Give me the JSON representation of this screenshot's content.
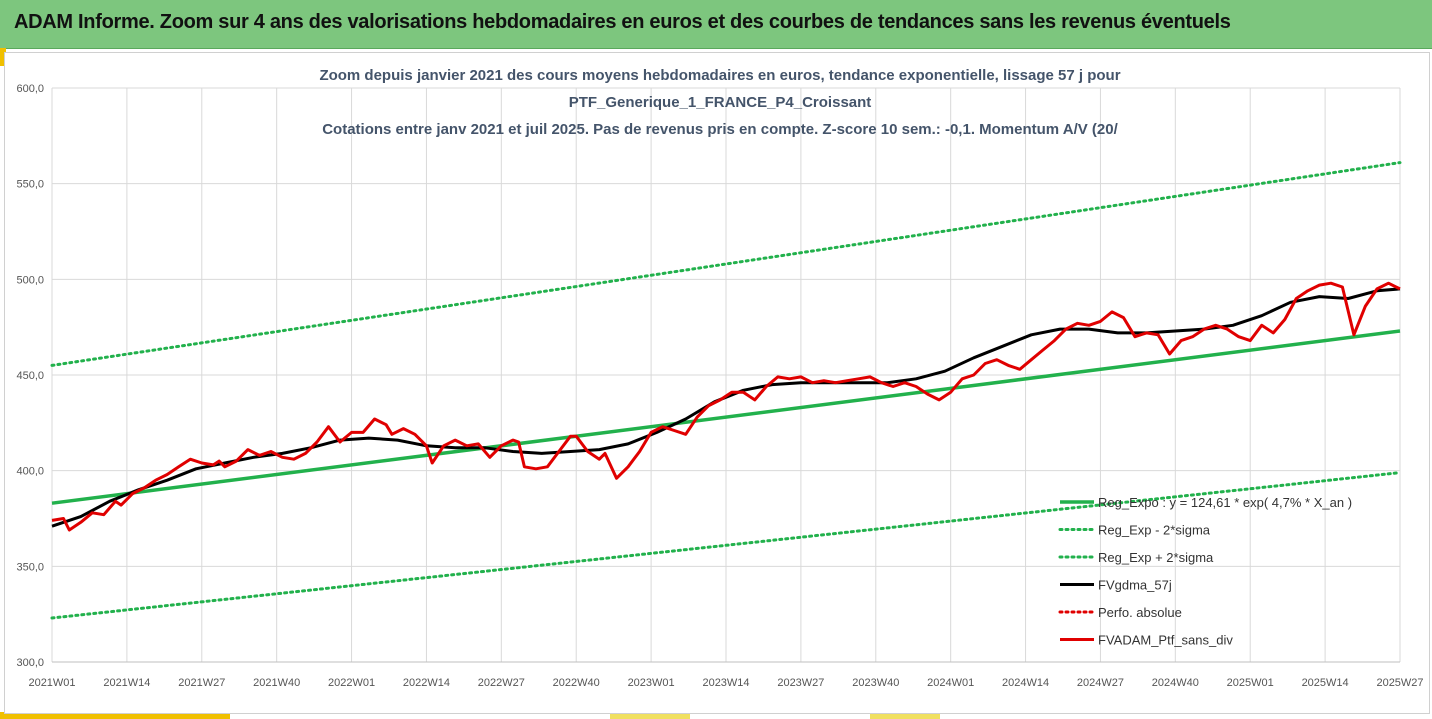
{
  "banner": {
    "title": "ADAM Informe. Zoom sur 4 ans des valorisations hebdomadaires en euros et des courbes de tendances sans les revenus éventuels"
  },
  "colors": {
    "banner_bg": "#7dc67e",
    "trend": "#22b14c",
    "sigma": "#22b14c",
    "mma": "#000000",
    "perfo": "#e00000",
    "portfolio": "#e00000"
  },
  "chart_data": {
    "type": "line",
    "title_lines": [
      "Zoom depuis janvier 2021 des cours moyens hebdomadaires  en euros, tendance exponentielle, lissage 57 j pour",
      "PTF_Generique_1_FRANCE_P4_Croissant",
      "Cotations entre janv 2021 et juil 2025. Pas de revenus pris en compte. Z-score 10 sem.: -0,1. Momentum A/V (20/"
    ],
    "ylim": [
      300,
      600
    ],
    "y_ticks": [
      "300,0",
      "350,0",
      "400,0",
      "450,0",
      "500,0",
      "550,0",
      "600,0"
    ],
    "y_tick_values": [
      300,
      350,
      400,
      450,
      500,
      550,
      600
    ],
    "x_ticks": [
      "2021W01",
      "2021W14",
      "2021W27",
      "2021W40",
      "2022W01",
      "2022W14",
      "2022W27",
      "2022W40",
      "2023W01",
      "2023W14",
      "2023W27",
      "2023W40",
      "2024W01",
      "2024W14",
      "2024W27",
      "2024W40",
      "2025W01",
      "2025W14",
      "2025W27"
    ],
    "x_range": [
      0,
      234
    ],
    "grid": true,
    "legend_position": "bottom-right",
    "series": [
      {
        "name": "Reg_Expo : y = 124,61 * exp( 4,7% *  X_an )",
        "kind": "trend",
        "points": [
          [
            0,
            383
          ],
          [
            234,
            473
          ]
        ]
      },
      {
        "name": "Reg_Exp - 2*sigma",
        "kind": "sigma",
        "points": [
          [
            0,
            323
          ],
          [
            234,
            399
          ]
        ]
      },
      {
        "name": "Reg_Exp + 2*sigma",
        "kind": "sigma",
        "points": [
          [
            0,
            455
          ],
          [
            234,
            561
          ]
        ]
      },
      {
        "name": "FVgdma_57j",
        "kind": "mma",
        "points": [
          [
            0,
            371
          ],
          [
            5,
            376
          ],
          [
            10,
            384
          ],
          [
            15,
            390
          ],
          [
            20,
            395
          ],
          [
            25,
            401
          ],
          [
            30,
            404
          ],
          [
            35,
            407
          ],
          [
            40,
            409
          ],
          [
            45,
            412
          ],
          [
            50,
            416
          ],
          [
            55,
            417
          ],
          [
            60,
            416
          ],
          [
            65,
            413
          ],
          [
            70,
            412
          ],
          [
            75,
            412
          ],
          [
            80,
            410
          ],
          [
            85,
            409
          ],
          [
            90,
            410
          ],
          [
            95,
            411
          ],
          [
            100,
            414
          ],
          [
            105,
            420
          ],
          [
            110,
            427
          ],
          [
            115,
            436
          ],
          [
            120,
            442
          ],
          [
            125,
            445
          ],
          [
            130,
            446
          ],
          [
            135,
            446
          ],
          [
            140,
            446
          ],
          [
            145,
            446
          ],
          [
            150,
            448
          ],
          [
            155,
            452
          ],
          [
            160,
            459
          ],
          [
            165,
            465
          ],
          [
            170,
            471
          ],
          [
            175,
            474
          ],
          [
            180,
            474
          ],
          [
            185,
            472
          ],
          [
            190,
            472
          ],
          [
            195,
            473
          ],
          [
            200,
            474
          ],
          [
            205,
            476
          ],
          [
            210,
            481
          ],
          [
            215,
            488
          ],
          [
            220,
            491
          ],
          [
            225,
            490
          ],
          [
            230,
            494
          ],
          [
            234,
            495
          ]
        ]
      },
      {
        "name": "Perfo. absolue",
        "kind": "perfo",
        "points": []
      },
      {
        "name": "FVADAM_Ptf_sans_div",
        "kind": "portfolio",
        "points": [
          [
            0,
            374
          ],
          [
            2,
            375
          ],
          [
            3,
            369
          ],
          [
            5,
            373
          ],
          [
            7,
            378
          ],
          [
            9,
            377
          ],
          [
            11,
            384
          ],
          [
            12,
            382
          ],
          [
            14,
            388
          ],
          [
            16,
            391
          ],
          [
            18,
            395
          ],
          [
            20,
            398
          ],
          [
            22,
            402
          ],
          [
            24,
            406
          ],
          [
            26,
            404
          ],
          [
            28,
            403
          ],
          [
            29,
            405
          ],
          [
            30,
            402
          ],
          [
            32,
            405
          ],
          [
            34,
            411
          ],
          [
            36,
            408
          ],
          [
            38,
            410
          ],
          [
            40,
            407
          ],
          [
            42,
            406
          ],
          [
            44,
            409
          ],
          [
            46,
            415
          ],
          [
            48,
            423
          ],
          [
            50,
            415
          ],
          [
            52,
            420
          ],
          [
            54,
            420
          ],
          [
            56,
            427
          ],
          [
            58,
            424
          ],
          [
            59,
            419
          ],
          [
            61,
            422
          ],
          [
            63,
            419
          ],
          [
            65,
            413
          ],
          [
            66,
            404
          ],
          [
            68,
            413
          ],
          [
            70,
            416
          ],
          [
            72,
            413
          ],
          [
            74,
            414
          ],
          [
            76,
            407
          ],
          [
            78,
            413
          ],
          [
            80,
            416
          ],
          [
            81,
            415
          ],
          [
            82,
            402
          ],
          [
            84,
            401
          ],
          [
            86,
            402
          ],
          [
            88,
            410
          ],
          [
            90,
            418
          ],
          [
            91,
            418
          ],
          [
            93,
            410
          ],
          [
            95,
            406
          ],
          [
            96,
            409
          ],
          [
            98,
            396
          ],
          [
            100,
            402
          ],
          [
            102,
            410
          ],
          [
            104,
            420
          ],
          [
            106,
            423
          ],
          [
            108,
            421
          ],
          [
            110,
            419
          ],
          [
            112,
            428
          ],
          [
            114,
            434
          ],
          [
            116,
            437
          ],
          [
            118,
            441
          ],
          [
            120,
            441
          ],
          [
            122,
            437
          ],
          [
            124,
            444
          ],
          [
            126,
            449
          ],
          [
            128,
            448
          ],
          [
            130,
            449
          ],
          [
            132,
            446
          ],
          [
            134,
            447
          ],
          [
            136,
            446
          ],
          [
            138,
            447
          ],
          [
            140,
            448
          ],
          [
            142,
            449
          ],
          [
            144,
            446
          ],
          [
            146,
            444
          ],
          [
            148,
            446
          ],
          [
            150,
            444
          ],
          [
            152,
            440
          ],
          [
            154,
            437
          ],
          [
            156,
            441
          ],
          [
            158,
            448
          ],
          [
            160,
            450
          ],
          [
            162,
            456
          ],
          [
            164,
            458
          ],
          [
            166,
            455
          ],
          [
            168,
            453
          ],
          [
            170,
            458
          ],
          [
            172,
            463
          ],
          [
            174,
            468
          ],
          [
            176,
            474
          ],
          [
            178,
            477
          ],
          [
            180,
            476
          ],
          [
            182,
            478
          ],
          [
            184,
            483
          ],
          [
            186,
            480
          ],
          [
            188,
            470
          ],
          [
            190,
            472
          ],
          [
            192,
            471
          ],
          [
            194,
            461
          ],
          [
            196,
            468
          ],
          [
            198,
            470
          ],
          [
            200,
            474
          ],
          [
            202,
            476
          ],
          [
            204,
            474
          ],
          [
            206,
            470
          ],
          [
            208,
            468
          ],
          [
            210,
            476
          ],
          [
            212,
            472
          ],
          [
            214,
            479
          ],
          [
            216,
            490
          ],
          [
            218,
            494
          ],
          [
            220,
            497
          ],
          [
            222,
            498
          ],
          [
            224,
            496
          ],
          [
            226,
            471
          ],
          [
            228,
            486
          ],
          [
            230,
            495
          ],
          [
            232,
            498
          ],
          [
            234,
            495
          ]
        ]
      }
    ]
  }
}
